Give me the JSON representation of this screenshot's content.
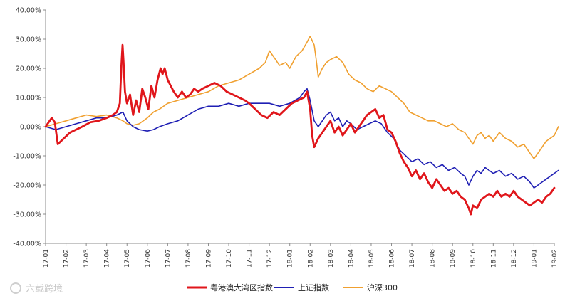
{
  "chart_data": {
    "type": "line",
    "title": "",
    "xlabel": "",
    "ylabel": "",
    "ylim": [
      -40,
      40
    ],
    "y_ticks": [
      "40.00%",
      "30.00%",
      "20.00%",
      "10.00%",
      "0.00%",
      "-10.00%",
      "-20.00%",
      "-30.00%",
      "-40.00%"
    ],
    "x_ticks": [
      "17-01",
      "17-02",
      "17-03",
      "17-04",
      "17-05",
      "17-06",
      "17-07",
      "17-08",
      "17-09",
      "17-10",
      "17-11",
      "17-12",
      "18-01",
      "18-02",
      "18-03",
      "18-04",
      "18-05",
      "18-06",
      "18-07",
      "18-08",
      "18-09",
      "18-10",
      "18-11",
      "18-12",
      "19-01",
      "19-02"
    ],
    "grid": false,
    "legend_position": "bottom",
    "series": [
      {
        "name": "粤港澳大湾区指数",
        "color": "#e0161b",
        "points": [
          [
            0,
            0
          ],
          [
            0.3,
            3
          ],
          [
            0.45,
            1.5
          ],
          [
            0.6,
            -6
          ],
          [
            0.9,
            -4
          ],
          [
            1.2,
            -2
          ],
          [
            1.5,
            -1
          ],
          [
            1.8,
            0
          ],
          [
            2.2,
            1.5
          ],
          [
            2.6,
            2
          ],
          [
            3.0,
            3
          ],
          [
            3.3,
            4
          ],
          [
            3.5,
            5
          ],
          [
            3.65,
            8
          ],
          [
            3.72,
            20
          ],
          [
            3.78,
            28
          ],
          [
            3.83,
            22
          ],
          [
            3.9,
            12
          ],
          [
            4.0,
            8
          ],
          [
            4.15,
            11
          ],
          [
            4.3,
            4
          ],
          [
            4.45,
            9
          ],
          [
            4.6,
            5
          ],
          [
            4.75,
            13
          ],
          [
            4.9,
            10
          ],
          [
            5.05,
            6
          ],
          [
            5.2,
            14
          ],
          [
            5.35,
            10
          ],
          [
            5.5,
            16
          ],
          [
            5.65,
            20
          ],
          [
            5.75,
            18
          ],
          [
            5.85,
            20
          ],
          [
            6.0,
            16
          ],
          [
            6.15,
            14
          ],
          [
            6.3,
            12
          ],
          [
            6.5,
            10
          ],
          [
            6.7,
            12
          ],
          [
            6.9,
            10
          ],
          [
            7.1,
            11
          ],
          [
            7.3,
            13
          ],
          [
            7.5,
            12
          ],
          [
            7.7,
            13
          ],
          [
            8.0,
            14
          ],
          [
            8.3,
            15
          ],
          [
            8.6,
            14
          ],
          [
            8.9,
            12
          ],
          [
            9.2,
            11
          ],
          [
            9.5,
            10
          ],
          [
            9.8,
            9
          ],
          [
            10.0,
            8
          ],
          [
            10.3,
            6
          ],
          [
            10.6,
            4
          ],
          [
            10.9,
            3
          ],
          [
            11.2,
            5
          ],
          [
            11.5,
            4
          ],
          [
            11.8,
            6
          ],
          [
            12.1,
            8
          ],
          [
            12.4,
            9
          ],
          [
            12.7,
            10
          ],
          [
            12.85,
            12
          ],
          [
            13.0,
            6
          ],
          [
            13.1,
            -3
          ],
          [
            13.2,
            -7
          ],
          [
            13.4,
            -4
          ],
          [
            13.6,
            -2
          ],
          [
            13.8,
            0
          ],
          [
            14.0,
            2
          ],
          [
            14.2,
            -2
          ],
          [
            14.4,
            0
          ],
          [
            14.6,
            -3
          ],
          [
            14.8,
            -1
          ],
          [
            15.0,
            1
          ],
          [
            15.2,
            -2
          ],
          [
            15.4,
            0
          ],
          [
            15.6,
            2
          ],
          [
            15.8,
            4
          ],
          [
            16.0,
            5
          ],
          [
            16.2,
            6
          ],
          [
            16.4,
            3
          ],
          [
            16.6,
            4
          ],
          [
            16.8,
            -1
          ],
          [
            17.0,
            -2
          ],
          [
            17.2,
            -5
          ],
          [
            17.4,
            -9
          ],
          [
            17.6,
            -12
          ],
          [
            17.8,
            -14
          ],
          [
            18.0,
            -17
          ],
          [
            18.2,
            -15
          ],
          [
            18.4,
            -18
          ],
          [
            18.6,
            -16
          ],
          [
            18.8,
            -19
          ],
          [
            19.0,
            -21
          ],
          [
            19.2,
            -18
          ],
          [
            19.4,
            -20
          ],
          [
            19.6,
            -22
          ],
          [
            19.8,
            -21
          ],
          [
            20.0,
            -23
          ],
          [
            20.2,
            -22
          ],
          [
            20.4,
            -24
          ],
          [
            20.6,
            -25
          ],
          [
            20.8,
            -28
          ],
          [
            20.9,
            -30
          ],
          [
            21.0,
            -27
          ],
          [
            21.2,
            -28
          ],
          [
            21.4,
            -25
          ],
          [
            21.6,
            -24
          ],
          [
            21.8,
            -23
          ],
          [
            22.0,
            -24
          ],
          [
            22.2,
            -22
          ],
          [
            22.4,
            -24
          ],
          [
            22.6,
            -23
          ],
          [
            22.8,
            -24
          ],
          [
            23.0,
            -22
          ],
          [
            23.2,
            -24
          ],
          [
            23.4,
            -25
          ],
          [
            23.6,
            -26
          ],
          [
            23.8,
            -27
          ],
          [
            24.0,
            -26
          ],
          [
            24.2,
            -25
          ],
          [
            24.4,
            -26
          ],
          [
            24.6,
            -24
          ],
          [
            24.8,
            -23
          ],
          [
            25.0,
            -21
          ]
        ]
      },
      {
        "name": "上证指数",
        "color": "#1f1fb4",
        "points": [
          [
            0,
            0
          ],
          [
            0.5,
            -1
          ],
          [
            1.0,
            0
          ],
          [
            1.5,
            1
          ],
          [
            2.0,
            2
          ],
          [
            2.5,
            3
          ],
          [
            3.0,
            3
          ],
          [
            3.5,
            4
          ],
          [
            3.8,
            5
          ],
          [
            4.0,
            2
          ],
          [
            4.3,
            0
          ],
          [
            4.6,
            -1
          ],
          [
            5.0,
            -1.5
          ],
          [
            5.3,
            -1
          ],
          [
            5.6,
            0
          ],
          [
            6.0,
            1
          ],
          [
            6.5,
            2
          ],
          [
            7.0,
            4
          ],
          [
            7.5,
            6
          ],
          [
            8.0,
            7
          ],
          [
            8.5,
            7
          ],
          [
            9.0,
            8
          ],
          [
            9.5,
            7
          ],
          [
            10.0,
            8
          ],
          [
            10.5,
            8
          ],
          [
            11.0,
            8
          ],
          [
            11.5,
            7
          ],
          [
            12.0,
            8
          ],
          [
            12.5,
            10
          ],
          [
            12.7,
            12
          ],
          [
            12.85,
            13
          ],
          [
            13.0,
            9
          ],
          [
            13.2,
            2
          ],
          [
            13.4,
            0
          ],
          [
            13.6,
            2
          ],
          [
            13.8,
            4
          ],
          [
            14.0,
            5
          ],
          [
            14.2,
            2
          ],
          [
            14.4,
            3
          ],
          [
            14.6,
            0
          ],
          [
            14.8,
            2
          ],
          [
            15.0,
            1
          ],
          [
            15.3,
            -1
          ],
          [
            15.6,
            0
          ],
          [
            15.9,
            1
          ],
          [
            16.2,
            2
          ],
          [
            16.5,
            1
          ],
          [
            16.8,
            -2
          ],
          [
            17.1,
            -4
          ],
          [
            17.4,
            -8
          ],
          [
            17.7,
            -10
          ],
          [
            18.0,
            -12
          ],
          [
            18.3,
            -11
          ],
          [
            18.6,
            -13
          ],
          [
            18.9,
            -12
          ],
          [
            19.2,
            -14
          ],
          [
            19.5,
            -13
          ],
          [
            19.8,
            -15
          ],
          [
            20.1,
            -14
          ],
          [
            20.4,
            -16
          ],
          [
            20.6,
            -17
          ],
          [
            20.8,
            -20
          ],
          [
            21.0,
            -17
          ],
          [
            21.2,
            -15
          ],
          [
            21.4,
            -16
          ],
          [
            21.6,
            -14
          ],
          [
            21.8,
            -15
          ],
          [
            22.0,
            -16
          ],
          [
            22.3,
            -15
          ],
          [
            22.6,
            -17
          ],
          [
            22.9,
            -16
          ],
          [
            23.2,
            -18
          ],
          [
            23.5,
            -17
          ],
          [
            23.8,
            -19
          ],
          [
            24.0,
            -21
          ],
          [
            24.2,
            -20
          ],
          [
            24.4,
            -19
          ],
          [
            24.6,
            -18
          ],
          [
            24.8,
            -17
          ],
          [
            25.0,
            -16
          ],
          [
            25.2,
            -15
          ]
        ]
      },
      {
        "name": "沪深300",
        "color": "#f0a030",
        "points": [
          [
            0,
            0
          ],
          [
            0.5,
            1
          ],
          [
            1.0,
            2
          ],
          [
            1.5,
            3
          ],
          [
            2.0,
            4
          ],
          [
            2.5,
            3.5
          ],
          [
            3.0,
            4
          ],
          [
            3.5,
            3
          ],
          [
            3.8,
            2
          ],
          [
            4.0,
            1
          ],
          [
            4.3,
            0.5
          ],
          [
            4.6,
            1
          ],
          [
            5.0,
            3
          ],
          [
            5.3,
            5
          ],
          [
            5.6,
            6
          ],
          [
            6.0,
            8
          ],
          [
            6.5,
            9
          ],
          [
            7.0,
            10
          ],
          [
            7.5,
            11
          ],
          [
            8.0,
            12
          ],
          [
            8.5,
            14
          ],
          [
            9.0,
            15
          ],
          [
            9.5,
            16
          ],
          [
            10.0,
            18
          ],
          [
            10.5,
            20
          ],
          [
            10.8,
            22
          ],
          [
            11.0,
            26
          ],
          [
            11.2,
            24
          ],
          [
            11.5,
            21
          ],
          [
            11.8,
            22
          ],
          [
            12.0,
            20
          ],
          [
            12.3,
            24
          ],
          [
            12.6,
            26
          ],
          [
            12.85,
            29
          ],
          [
            13.0,
            31
          ],
          [
            13.2,
            28
          ],
          [
            13.3,
            23
          ],
          [
            13.4,
            17
          ],
          [
            13.6,
            20
          ],
          [
            13.8,
            22
          ],
          [
            14.0,
            23
          ],
          [
            14.3,
            24
          ],
          [
            14.6,
            22
          ],
          [
            14.9,
            18
          ],
          [
            15.2,
            16
          ],
          [
            15.5,
            15
          ],
          [
            15.8,
            13
          ],
          [
            16.1,
            12
          ],
          [
            16.4,
            14
          ],
          [
            16.7,
            13
          ],
          [
            17.0,
            12
          ],
          [
            17.3,
            10
          ],
          [
            17.6,
            8
          ],
          [
            17.9,
            5
          ],
          [
            18.2,
            4
          ],
          [
            18.5,
            3
          ],
          [
            18.8,
            2
          ],
          [
            19.1,
            2
          ],
          [
            19.4,
            1
          ],
          [
            19.7,
            0
          ],
          [
            20.0,
            1
          ],
          [
            20.3,
            -1
          ],
          [
            20.6,
            -2
          ],
          [
            20.8,
            -4
          ],
          [
            21.0,
            -6
          ],
          [
            21.2,
            -3
          ],
          [
            21.4,
            -2
          ],
          [
            21.6,
            -4
          ],
          [
            21.8,
            -3
          ],
          [
            22.0,
            -5
          ],
          [
            22.3,
            -2
          ],
          [
            22.6,
            -4
          ],
          [
            22.9,
            -5
          ],
          [
            23.2,
            -7
          ],
          [
            23.5,
            -6
          ],
          [
            23.8,
            -9
          ],
          [
            24.0,
            -11
          ],
          [
            24.2,
            -9
          ],
          [
            24.4,
            -7
          ],
          [
            24.6,
            -5
          ],
          [
            24.8,
            -4
          ],
          [
            25.0,
            -3
          ],
          [
            25.2,
            0
          ]
        ]
      }
    ]
  },
  "watermark": {
    "text": "六载跨境"
  }
}
